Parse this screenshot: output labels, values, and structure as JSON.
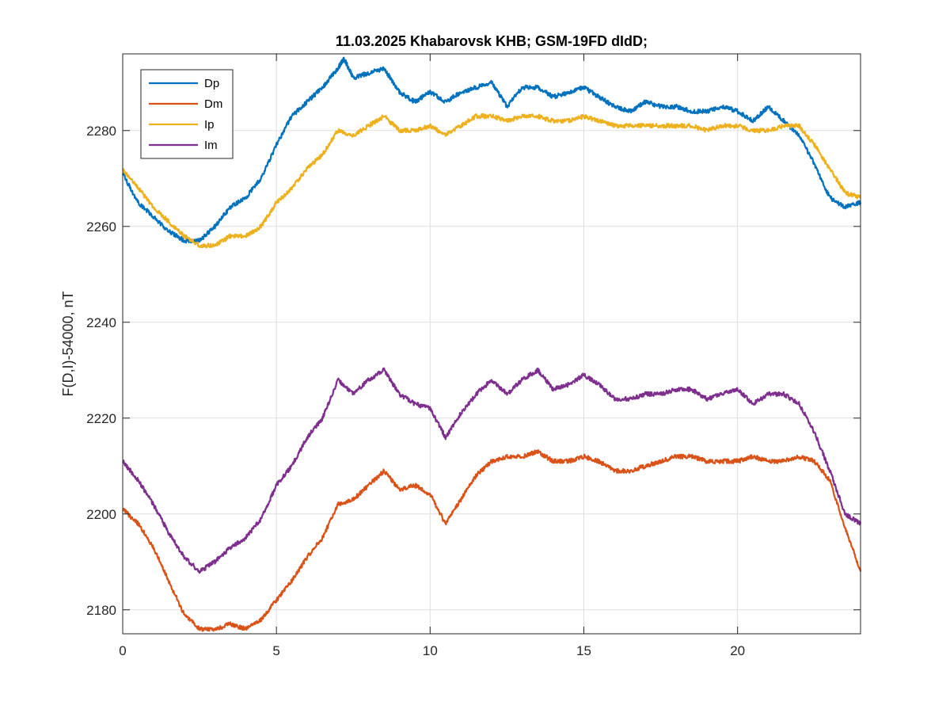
{
  "chart_data": {
    "type": "line",
    "title": "11.03.2025  Khabarovsk KHB; GSM-19FD dIdD;",
    "xlabel": "",
    "ylabel": "F(D,I)-54000, nT",
    "xlim": [
      0,
      24
    ],
    "ylim": [
      2175,
      2296
    ],
    "xticks": [
      0,
      5,
      10,
      15,
      20
    ],
    "yticks": [
      2180,
      2200,
      2220,
      2240,
      2260,
      2280
    ],
    "grid": true,
    "legend_position": "top-left",
    "series": [
      {
        "name": "Dp",
        "color": "#0072BD",
        "x": [
          0,
          0.5,
          1,
          1.5,
          2,
          2.5,
          3,
          3.5,
          4,
          4.5,
          5,
          5.5,
          6,
          6.5,
          7,
          7.2,
          7.5,
          8,
          8.5,
          9,
          9.5,
          10,
          10.5,
          11,
          11.5,
          12,
          12.5,
          13,
          13.5,
          14,
          14.5,
          15,
          15.5,
          16,
          16.5,
          17,
          17.5,
          18,
          18.5,
          19,
          19.5,
          20,
          20.5,
          21,
          21.5,
          22,
          22.5,
          23,
          23.5,
          24
        ],
        "y": [
          2271,
          2265,
          2262,
          2259,
          2257,
          2257,
          2260,
          2264,
          2266,
          2270,
          2277,
          2283,
          2286,
          2289,
          2293,
          2295,
          2291,
          2292,
          2293,
          2288,
          2286,
          2288,
          2286,
          2288,
          2289,
          2290,
          2285,
          2289,
          2289,
          2287,
          2288,
          2289,
          2287,
          2285,
          2284,
          2286,
          2285,
          2285,
          2284,
          2284,
          2285,
          2284,
          2282,
          2285,
          2282,
          2279,
          2273,
          2266,
          2264,
          2265
        ]
      },
      {
        "name": "Dm",
        "color": "#D95319",
        "x": [
          0,
          0.5,
          1,
          1.5,
          2,
          2.5,
          3,
          3.5,
          4,
          4.5,
          5,
          5.5,
          6,
          6.5,
          7,
          7.5,
          8,
          8.5,
          9,
          9.5,
          10,
          10.5,
          11,
          11.5,
          12,
          12.5,
          13,
          13.5,
          14,
          14.5,
          15,
          15.5,
          16,
          16.5,
          17,
          17.5,
          18,
          18.5,
          19,
          19.5,
          20,
          20.5,
          21,
          21.5,
          22,
          22.5,
          23,
          23.5,
          24
        ],
        "y": [
          2201,
          2198,
          2193,
          2186,
          2179,
          2176,
          2176,
          2177,
          2176,
          2178,
          2182,
          2186,
          2191,
          2195,
          2202,
          2203,
          2206,
          2209,
          2205,
          2206,
          2204,
          2198,
          2203,
          2208,
          2211,
          2212,
          2212,
          2213,
          2211,
          2211,
          2212,
          2211,
          2209,
          2209,
          2210,
          2211,
          2212,
          2212,
          2211,
          2211,
          2211,
          2212,
          2211,
          2211,
          2212,
          2211,
          2207,
          2197,
          2188
        ]
      },
      {
        "name": "Ip",
        "color": "#EDB120",
        "x": [
          0,
          0.5,
          1,
          1.5,
          2,
          2.5,
          3,
          3.5,
          4,
          4.5,
          5,
          5.5,
          6,
          6.5,
          7,
          7.5,
          8,
          8.5,
          9,
          9.5,
          10,
          10.5,
          11,
          11.5,
          12,
          12.5,
          13,
          13.5,
          14,
          14.5,
          15,
          15.5,
          16,
          16.5,
          17,
          17.5,
          18,
          18.5,
          19,
          19.5,
          20,
          20.5,
          21,
          21.5,
          22,
          22.5,
          23,
          23.5,
          24
        ],
        "y": [
          2272,
          2268,
          2264,
          2261,
          2258,
          2256,
          2256,
          2258,
          2258,
          2260,
          2265,
          2268,
          2272,
          2275,
          2280,
          2279,
          2281,
          2283,
          2280,
          2280,
          2281,
          2279,
          2281,
          2283,
          2283,
          2282,
          2283,
          2283,
          2282,
          2282,
          2283,
          2282,
          2281,
          2281,
          2281,
          2281,
          2281,
          2281,
          2280,
          2281,
          2281,
          2280,
          2280,
          2281,
          2281,
          2277,
          2272,
          2267,
          2266
        ]
      },
      {
        "name": "Im",
        "color": "#7E2F8E",
        "x": [
          0,
          0.5,
          1,
          1.5,
          2,
          2.5,
          3,
          3.5,
          4,
          4.5,
          5,
          5.5,
          6,
          6.5,
          7,
          7.5,
          8,
          8.5,
          9,
          9.5,
          10,
          10.5,
          11,
          11.5,
          12,
          12.5,
          13,
          13.5,
          14,
          14.5,
          15,
          15.5,
          16,
          16.5,
          17,
          17.5,
          18,
          18.5,
          19,
          19.5,
          20,
          20.5,
          21,
          21.5,
          22,
          22.5,
          23,
          23.5,
          24
        ],
        "y": [
          2211,
          2207,
          2202,
          2196,
          2191,
          2188,
          2190,
          2193,
          2195,
          2199,
          2206,
          2210,
          2216,
          2220,
          2228,
          2225,
          2228,
          2230,
          2225,
          2223,
          2222,
          2216,
          2221,
          2225,
          2228,
          2225,
          2228,
          2230,
          2226,
          2227,
          2229,
          2227,
          2224,
          2224,
          2225,
          2225,
          2226,
          2226,
          2224,
          2225,
          2226,
          2223,
          2225,
          2225,
          2223,
          2217,
          2209,
          2200,
          2198
        ]
      }
    ]
  }
}
